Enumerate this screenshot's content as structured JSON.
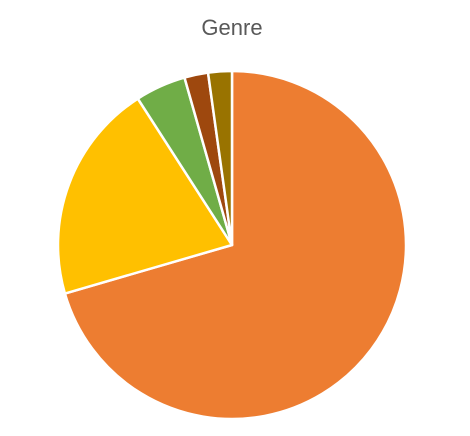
{
  "chart_data": {
    "type": "pie",
    "title": "Genre",
    "values": [
      70.5,
      20.4,
      4.7,
      2.2,
      2.2
    ],
    "colors": [
      "#ED7D31",
      "#FFC000",
      "#70AD47",
      "#9E480E",
      "#997300"
    ]
  }
}
